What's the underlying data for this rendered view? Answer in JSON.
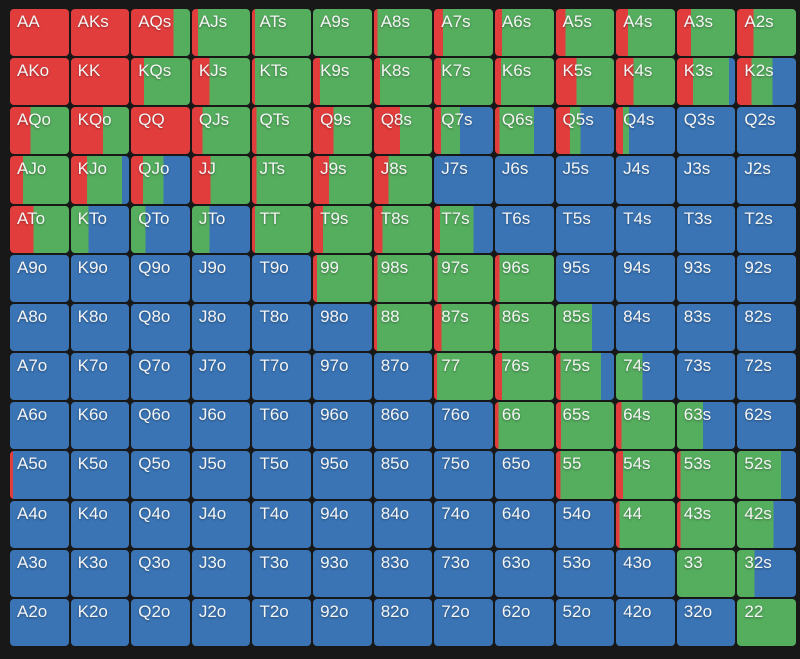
{
  "colors": {
    "red": "#e23d3d",
    "green": "#55ad5e",
    "blue": "#3a74b4",
    "grid_background": "#181818",
    "label_text": "#f5f5f5"
  },
  "chart_data": {
    "type": "heatmap",
    "description": "13x13 poker preflop hand range matrix; each cell is split into vertical color bands (red, green, blue fractions of cell width).",
    "cell_format": [
      "hand",
      "red_fraction",
      "green_fraction",
      "blue_fraction"
    ],
    "rows": [
      [
        [
          "AA",
          1,
          0,
          0
        ],
        [
          "AKs",
          1,
          0,
          0
        ],
        [
          "AQs",
          0.72,
          0.28,
          0
        ],
        [
          "AJs",
          0.1,
          0.9,
          0
        ],
        [
          "ATs",
          0.05,
          0.95,
          0
        ],
        [
          "A9s",
          0,
          1,
          0
        ],
        [
          "A8s",
          0.06,
          0.94,
          0
        ],
        [
          "A7s",
          0.15,
          0.85,
          0
        ],
        [
          "A6s",
          0.12,
          0.88,
          0
        ],
        [
          "A5s",
          0.16,
          0.84,
          0
        ],
        [
          "A4s",
          0.2,
          0.8,
          0
        ],
        [
          "A3s",
          0.24,
          0.76,
          0
        ],
        [
          "A2s",
          0.28,
          0.72,
          0
        ]
      ],
      [
        [
          "AKo",
          1,
          0,
          0
        ],
        [
          "KK",
          1,
          0,
          0
        ],
        [
          "KQs",
          0.22,
          0.78,
          0
        ],
        [
          "KJs",
          0.3,
          0.7,
          0
        ],
        [
          "KTs",
          0.05,
          0.95,
          0
        ],
        [
          "K9s",
          0.12,
          0.88,
          0
        ],
        [
          "K8s",
          0.1,
          0.9,
          0
        ],
        [
          "K7s",
          0.12,
          0.88,
          0
        ],
        [
          "K6s",
          0.1,
          0.9,
          0
        ],
        [
          "K5s",
          0.35,
          0.65,
          0
        ],
        [
          "K4s",
          0.3,
          0.7,
          0
        ],
        [
          "K3s",
          0.28,
          0.62,
          0.1
        ],
        [
          "K2s",
          0.25,
          0.35,
          0.4
        ]
      ],
      [
        [
          "AQo",
          0.35,
          0.65,
          0
        ],
        [
          "KQo",
          0.55,
          0.45,
          0
        ],
        [
          "QQ",
          1,
          0,
          0
        ],
        [
          "QJs",
          0.18,
          0.82,
          0
        ],
        [
          "QTs",
          0.08,
          0.92,
          0
        ],
        [
          "Q9s",
          0.35,
          0.65,
          0
        ],
        [
          "Q8s",
          0.45,
          0.55,
          0
        ],
        [
          "Q7s",
          0.12,
          0.32,
          0.56
        ],
        [
          "Q6s",
          0.08,
          0.58,
          0.34
        ],
        [
          "Q5s",
          0.24,
          0.18,
          0.58
        ],
        [
          "Q4s",
          0.12,
          0.1,
          0.78
        ],
        [
          "Q3s",
          0,
          0,
          1
        ],
        [
          "Q2s",
          0,
          0,
          1
        ]
      ],
      [
        [
          "AJo",
          0.22,
          0.78,
          0
        ],
        [
          "KJo",
          0.28,
          0.6,
          0.12
        ],
        [
          "QJo",
          0.2,
          0.35,
          0.45
        ],
        [
          "JJ",
          0.32,
          0.68,
          0
        ],
        [
          "JTs",
          0.08,
          0.92,
          0
        ],
        [
          "J9s",
          0.27,
          0.73,
          0
        ],
        [
          "J8s",
          0.25,
          0.75,
          0
        ],
        [
          "J7s",
          0,
          0,
          1
        ],
        [
          "J6s",
          0,
          0,
          1
        ],
        [
          "J5s",
          0,
          0,
          1
        ],
        [
          "J4s",
          0,
          0,
          1
        ],
        [
          "J3s",
          0,
          0,
          1
        ],
        [
          "J2s",
          0,
          0,
          1
        ]
      ],
      [
        [
          "ATo",
          0.4,
          0.6,
          0
        ],
        [
          "KTo",
          0,
          0.3,
          0.7
        ],
        [
          "QTo",
          0,
          0.25,
          0.75
        ],
        [
          "JTo",
          0,
          0.3,
          0.7
        ],
        [
          "TT",
          0.05,
          0.95,
          0
        ],
        [
          "T9s",
          0.17,
          0.83,
          0
        ],
        [
          "T8s",
          0.15,
          0.85,
          0
        ],
        [
          "T7s",
          0.1,
          0.57,
          0.33
        ],
        [
          "T6s",
          0,
          0,
          1
        ],
        [
          "T5s",
          0,
          0,
          1
        ],
        [
          "T4s",
          0,
          0,
          1
        ],
        [
          "T3s",
          0,
          0,
          1
        ],
        [
          "T2s",
          0,
          0,
          1
        ]
      ],
      [
        [
          "A9o",
          0,
          0,
          1
        ],
        [
          "K9o",
          0,
          0,
          1
        ],
        [
          "Q9o",
          0,
          0,
          1
        ],
        [
          "J9o",
          0,
          0,
          1
        ],
        [
          "T9o",
          0,
          0,
          1
        ],
        [
          "99",
          0.07,
          0.93,
          0
        ],
        [
          "98s",
          0.06,
          0.94,
          0
        ],
        [
          "97s",
          0.06,
          0.94,
          0
        ],
        [
          "96s",
          0.08,
          0.92,
          0
        ],
        [
          "95s",
          0,
          0,
          1
        ],
        [
          "94s",
          0,
          0,
          1
        ],
        [
          "93s",
          0,
          0,
          1
        ],
        [
          "92s",
          0,
          0,
          1
        ]
      ],
      [
        [
          "A8o",
          0,
          0,
          1
        ],
        [
          "K8o",
          0,
          0,
          1
        ],
        [
          "Q8o",
          0,
          0,
          1
        ],
        [
          "J8o",
          0,
          0,
          1
        ],
        [
          "T8o",
          0,
          0,
          1
        ],
        [
          "98o",
          0,
          0,
          1
        ],
        [
          "88",
          0.05,
          0.95,
          0
        ],
        [
          "87s",
          0.13,
          0.87,
          0
        ],
        [
          "86s",
          0.08,
          0.92,
          0
        ],
        [
          "85s",
          0,
          0.62,
          0.38
        ],
        [
          "84s",
          0,
          0,
          1
        ],
        [
          "83s",
          0,
          0,
          1
        ],
        [
          "82s",
          0,
          0,
          1
        ]
      ],
      [
        [
          "A7o",
          0,
          0,
          1
        ],
        [
          "K7o",
          0,
          0,
          1
        ],
        [
          "Q7o",
          0,
          0,
          1
        ],
        [
          "J7o",
          0,
          0,
          1
        ],
        [
          "T7o",
          0,
          0,
          1
        ],
        [
          "97o",
          0,
          0,
          1
        ],
        [
          "87o",
          0,
          0,
          1
        ],
        [
          "77",
          0.05,
          0.95,
          0
        ],
        [
          "76s",
          0.12,
          0.88,
          0
        ],
        [
          "75s",
          0.08,
          0.7,
          0.22
        ],
        [
          "74s",
          0,
          0.45,
          0.55
        ],
        [
          "73s",
          0,
          0,
          1
        ],
        [
          "72s",
          0,
          0,
          1
        ]
      ],
      [
        [
          "A6o",
          0,
          0,
          1
        ],
        [
          "K6o",
          0,
          0,
          1
        ],
        [
          "Q6o",
          0,
          0,
          1
        ],
        [
          "J6o",
          0,
          0,
          1
        ],
        [
          "T6o",
          0,
          0,
          1
        ],
        [
          "96o",
          0,
          0,
          1
        ],
        [
          "86o",
          0,
          0,
          1
        ],
        [
          "76o",
          0,
          0,
          1
        ],
        [
          "66",
          0.06,
          0.94,
          0
        ],
        [
          "65s",
          0.09,
          0.91,
          0
        ],
        [
          "64s",
          0.09,
          0.91,
          0
        ],
        [
          "63s",
          0,
          0.45,
          0.55
        ],
        [
          "62s",
          0,
          0,
          1
        ]
      ],
      [
        [
          "A5o",
          0.05,
          0,
          0.95
        ],
        [
          "K5o",
          0,
          0,
          1
        ],
        [
          "Q5o",
          0,
          0,
          1
        ],
        [
          "J5o",
          0,
          0,
          1
        ],
        [
          "T5o",
          0,
          0,
          1
        ],
        [
          "95o",
          0,
          0,
          1
        ],
        [
          "85o",
          0,
          0,
          1
        ],
        [
          "75o",
          0,
          0,
          1
        ],
        [
          "65o",
          0,
          0,
          1
        ],
        [
          "55",
          0.08,
          0.92,
          0
        ],
        [
          "54s",
          0.12,
          0.88,
          0
        ],
        [
          "53s",
          0.06,
          0.94,
          0
        ],
        [
          "52s",
          0,
          0.75,
          0.25
        ]
      ],
      [
        [
          "A4o",
          0,
          0,
          1
        ],
        [
          "K4o",
          0,
          0,
          1
        ],
        [
          "Q4o",
          0,
          0,
          1
        ],
        [
          "J4o",
          0,
          0,
          1
        ],
        [
          "T4o",
          0,
          0,
          1
        ],
        [
          "94o",
          0,
          0,
          1
        ],
        [
          "84o",
          0,
          0,
          1
        ],
        [
          "74o",
          0,
          0,
          1
        ],
        [
          "64o",
          0,
          0,
          1
        ],
        [
          "54o",
          0,
          0,
          1
        ],
        [
          "44",
          0.06,
          0.94,
          0
        ],
        [
          "43s",
          0.06,
          0.94,
          0
        ],
        [
          "42s",
          0,
          0.62,
          0.38
        ]
      ],
      [
        [
          "A3o",
          0,
          0,
          1
        ],
        [
          "K3o",
          0,
          0,
          1
        ],
        [
          "Q3o",
          0,
          0,
          1
        ],
        [
          "J3o",
          0,
          0,
          1
        ],
        [
          "T3o",
          0,
          0,
          1
        ],
        [
          "93o",
          0,
          0,
          1
        ],
        [
          "83o",
          0,
          0,
          1
        ],
        [
          "73o",
          0,
          0,
          1
        ],
        [
          "63o",
          0,
          0,
          1
        ],
        [
          "53o",
          0,
          0,
          1
        ],
        [
          "43o",
          0,
          0,
          1
        ],
        [
          "33",
          0,
          1,
          0
        ],
        [
          "32s",
          0,
          0.3,
          0.7
        ]
      ],
      [
        [
          "A2o",
          0,
          0,
          1
        ],
        [
          "K2o",
          0,
          0,
          1
        ],
        [
          "Q2o",
          0,
          0,
          1
        ],
        [
          "J2o",
          0,
          0,
          1
        ],
        [
          "T2o",
          0,
          0,
          1
        ],
        [
          "92o",
          0,
          0,
          1
        ],
        [
          "82o",
          0,
          0,
          1
        ],
        [
          "72o",
          0,
          0,
          1
        ],
        [
          "62o",
          0,
          0,
          1
        ],
        [
          "52o",
          0,
          0,
          1
        ],
        [
          "42o",
          0,
          0,
          1
        ],
        [
          "32o",
          0,
          0,
          1
        ],
        [
          "22",
          0,
          1,
          0
        ]
      ]
    ]
  }
}
